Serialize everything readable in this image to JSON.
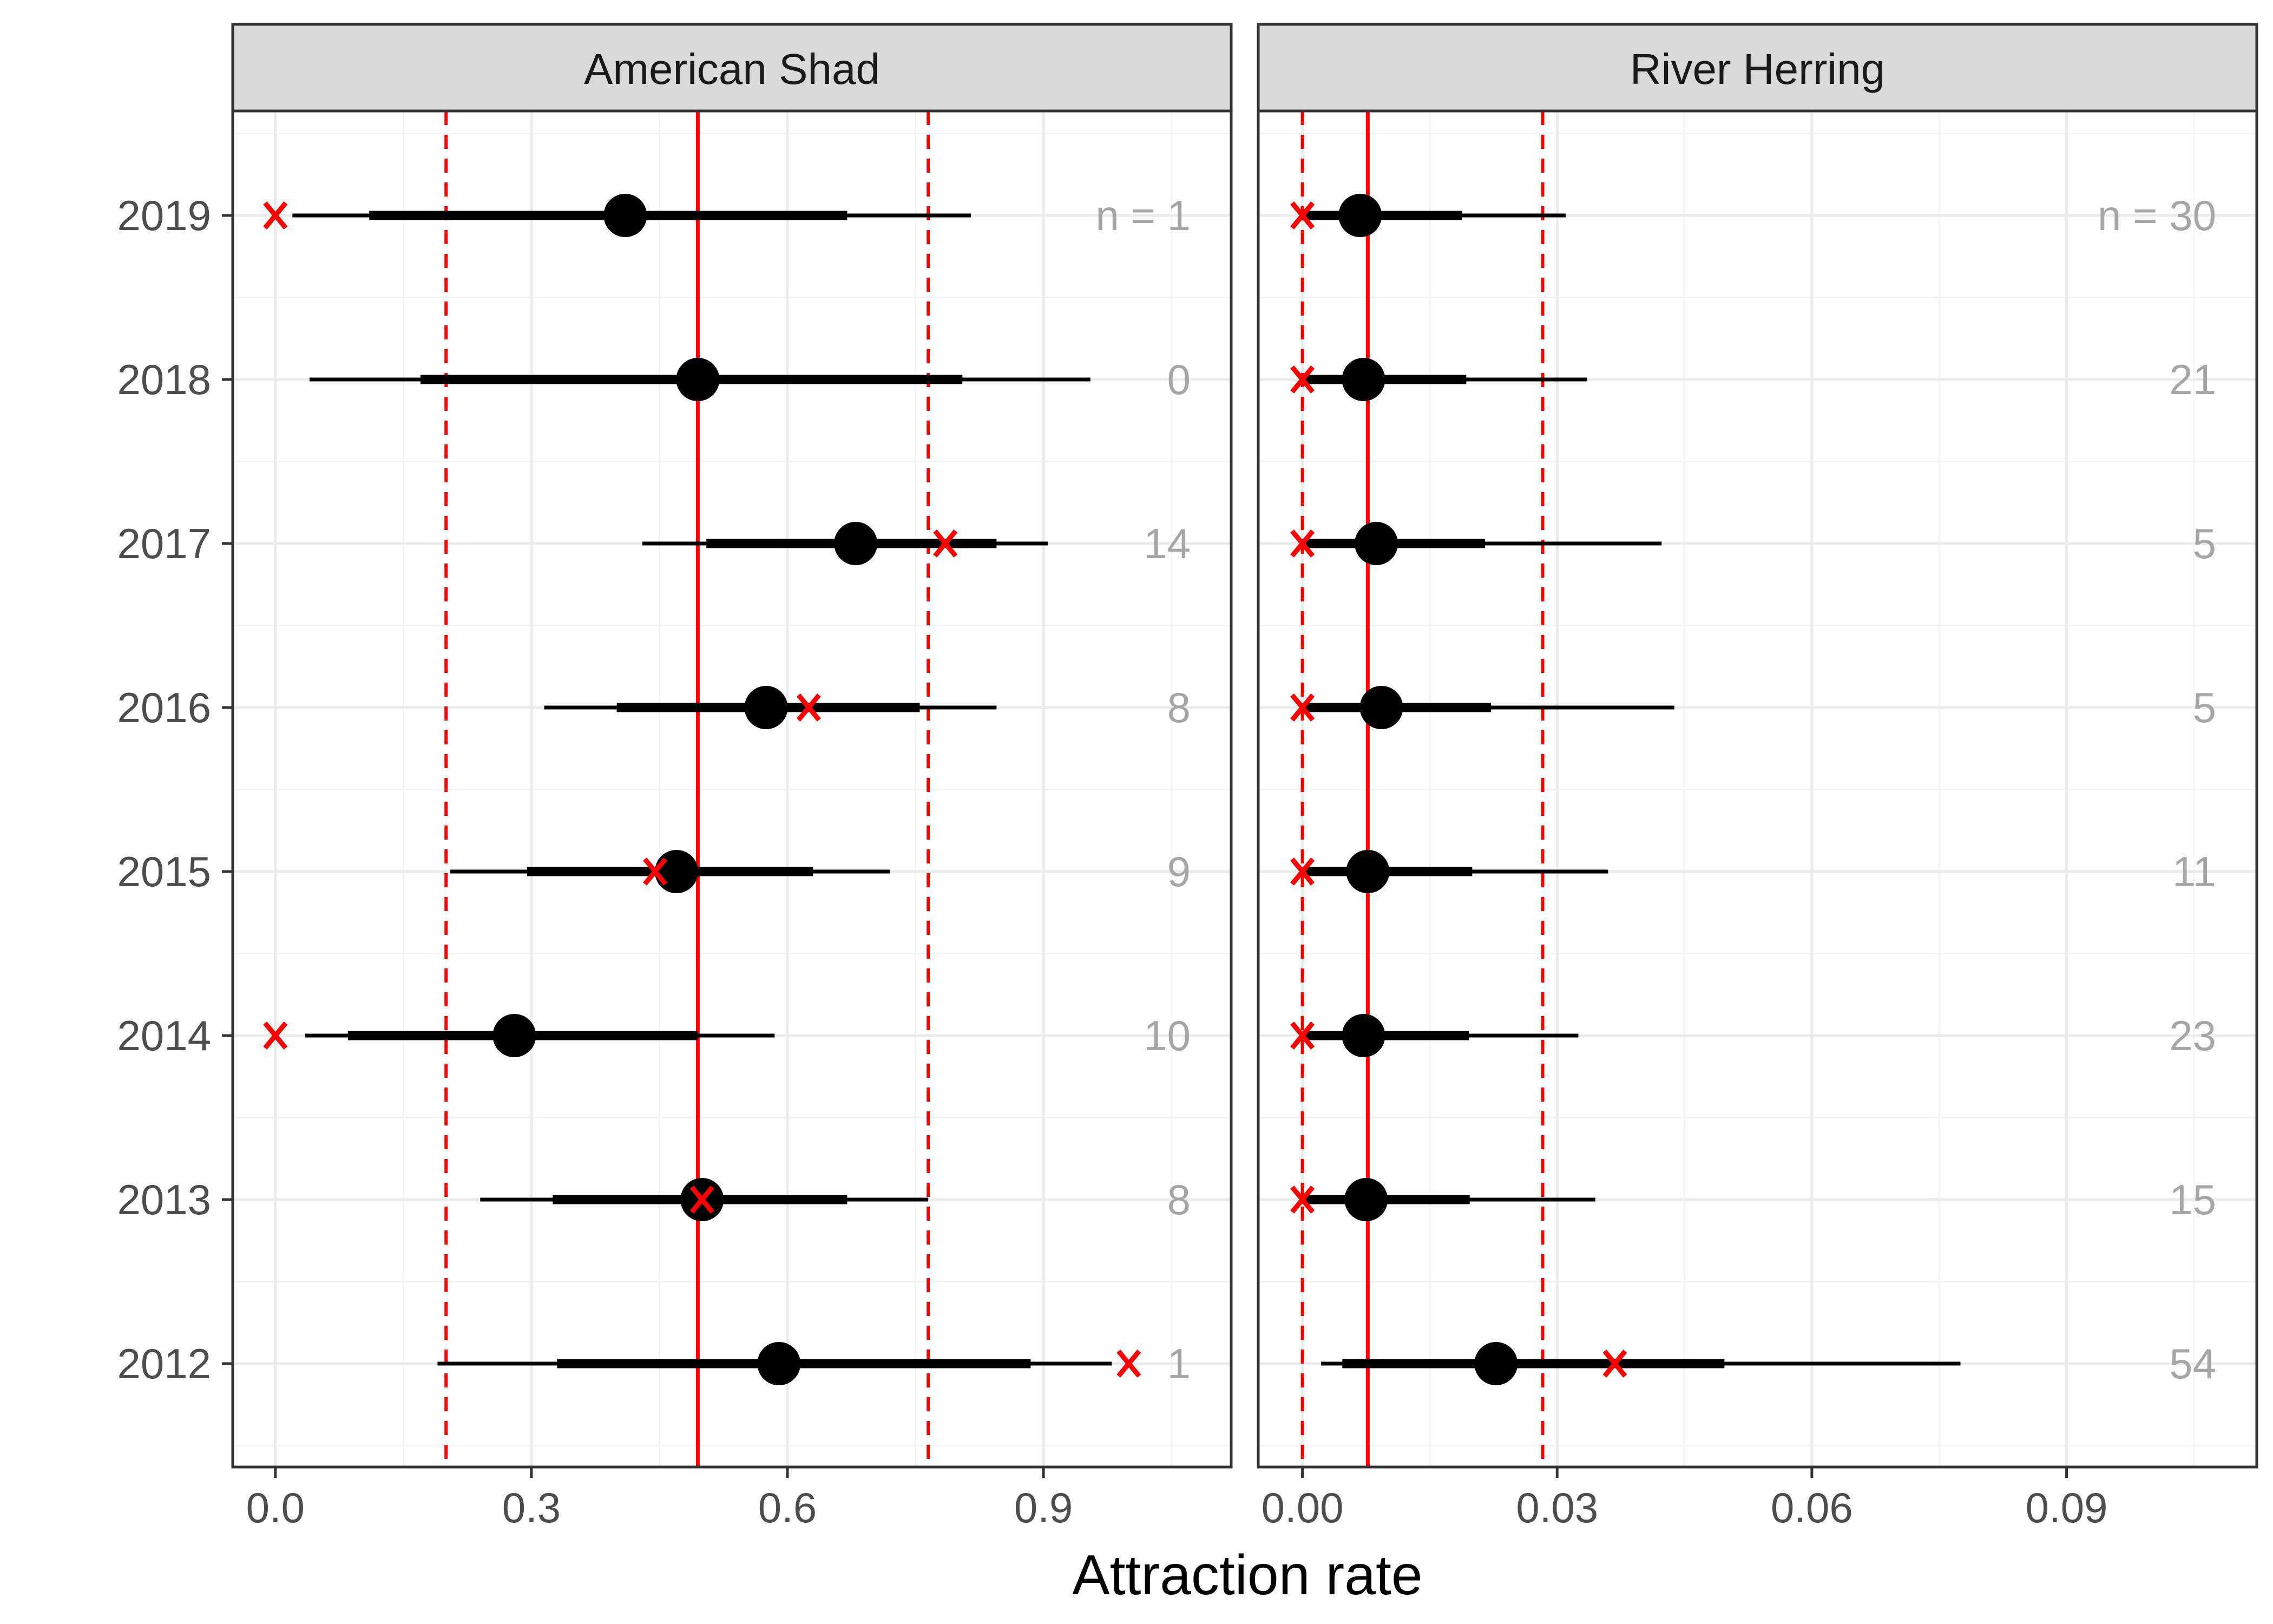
{
  "chart_data": {
    "type": "forest",
    "xlabel": "Attraction rate",
    "years": [
      "2019",
      "2018",
      "2017",
      "2016",
      "2015",
      "2014",
      "2013",
      "2012"
    ],
    "colors": {
      "point": "#000000",
      "observed": "#ff0000",
      "reference": "#ff0000",
      "strip": "#d9d9d9",
      "grid_major": "#ebebeb",
      "grid_minor": "#f4f4f4",
      "n_label": "#a6a6a6"
    },
    "panels": [
      {
        "title": "American Shad",
        "xlim": [
          -0.05,
          1.12
        ],
        "xticks": [
          0.0,
          0.3,
          0.6,
          0.9
        ],
        "xtick_labels": [
          "0.0",
          "0.3",
          "0.6",
          "0.9"
        ],
        "median_line": 0.495,
        "interval_lines": [
          0.2,
          0.765
        ],
        "n_prefix": "n = ",
        "rows": [
          {
            "year": "2019",
            "estimate": 0.41,
            "inner": [
              0.11,
              0.67
            ],
            "outer": [
              0.02,
              0.815
            ],
            "observed": 0.0,
            "n": "1"
          },
          {
            "year": "2018",
            "estimate": 0.495,
            "inner": [
              0.17,
              0.805
            ],
            "outer": [
              0.04,
              0.955
            ],
            "observed": null,
            "n": "0"
          },
          {
            "year": "2017",
            "estimate": 0.68,
            "inner": [
              0.505,
              0.845
            ],
            "outer": [
              0.43,
              0.905
            ],
            "observed": 0.785,
            "n": "14"
          },
          {
            "year": "2016",
            "estimate": 0.575,
            "inner": [
              0.4,
              0.755
            ],
            "outer": [
              0.315,
              0.845
            ],
            "observed": 0.625,
            "n": "8"
          },
          {
            "year": "2015",
            "estimate": 0.47,
            "inner": [
              0.295,
              0.63
            ],
            "outer": [
              0.205,
              0.72
            ],
            "observed": 0.445,
            "n": "9"
          },
          {
            "year": "2014",
            "estimate": 0.28,
            "inner": [
              0.085,
              0.495
            ],
            "outer": [
              0.035,
              0.585
            ],
            "observed": 0.0,
            "n": "10"
          },
          {
            "year": "2013",
            "estimate": 0.5,
            "inner": [
              0.325,
              0.67
            ],
            "outer": [
              0.24,
              0.765
            ],
            "observed": 0.5,
            "n": "8"
          },
          {
            "year": "2012",
            "estimate": 0.59,
            "inner": [
              0.33,
              0.885
            ],
            "outer": [
              0.19,
              0.98
            ],
            "observed": 1.0,
            "n": "1"
          }
        ]
      },
      {
        "title": "River Herring",
        "xlim": [
          -0.0052,
          0.1124
        ],
        "xticks": [
          0.0,
          0.03,
          0.06,
          0.09
        ],
        "xtick_labels": [
          "0.00",
          "0.03",
          "0.06",
          "0.09"
        ],
        "median_line": 0.0077,
        "interval_lines": [
          0.0,
          0.0283
        ],
        "n_prefix": "n = ",
        "rows": [
          {
            "year": "2019",
            "estimate": 0.0068,
            "inner": [
              0.0,
              0.0188
            ],
            "outer": [
              0.0,
              0.031
            ],
            "observed": 0.0,
            "n": "30"
          },
          {
            "year": "2018",
            "estimate": 0.0072,
            "inner": [
              0.0,
              0.0193
            ],
            "outer": [
              0.0,
              0.0335
            ],
            "observed": 0.0,
            "n": "21"
          },
          {
            "year": "2017",
            "estimate": 0.0087,
            "inner": [
              0.0,
              0.0215
            ],
            "outer": [
              0.0,
              0.0423
            ],
            "observed": 0.0,
            "n": "5"
          },
          {
            "year": "2016",
            "estimate": 0.0093,
            "inner": [
              0.0,
              0.0222
            ],
            "outer": [
              0.0,
              0.0438
            ],
            "observed": 0.0,
            "n": "5"
          },
          {
            "year": "2015",
            "estimate": 0.0077,
            "inner": [
              0.0,
              0.02
            ],
            "outer": [
              0.0,
              0.036
            ],
            "observed": 0.0,
            "n": "11"
          },
          {
            "year": "2014",
            "estimate": 0.0072,
            "inner": [
              0.0,
              0.0196
            ],
            "outer": [
              0.0,
              0.0325
            ],
            "observed": 0.0,
            "n": "23"
          },
          {
            "year": "2013",
            "estimate": 0.0075,
            "inner": [
              0.0,
              0.0197
            ],
            "outer": [
              0.0,
              0.0345
            ],
            "observed": 0.0,
            "n": "15"
          },
          {
            "year": "2012",
            "estimate": 0.0228,
            "inner": [
              0.0047,
              0.0497
            ],
            "outer": [
              0.0022,
              0.0775
            ],
            "observed": 0.0368,
            "n": "54"
          }
        ]
      }
    ]
  }
}
